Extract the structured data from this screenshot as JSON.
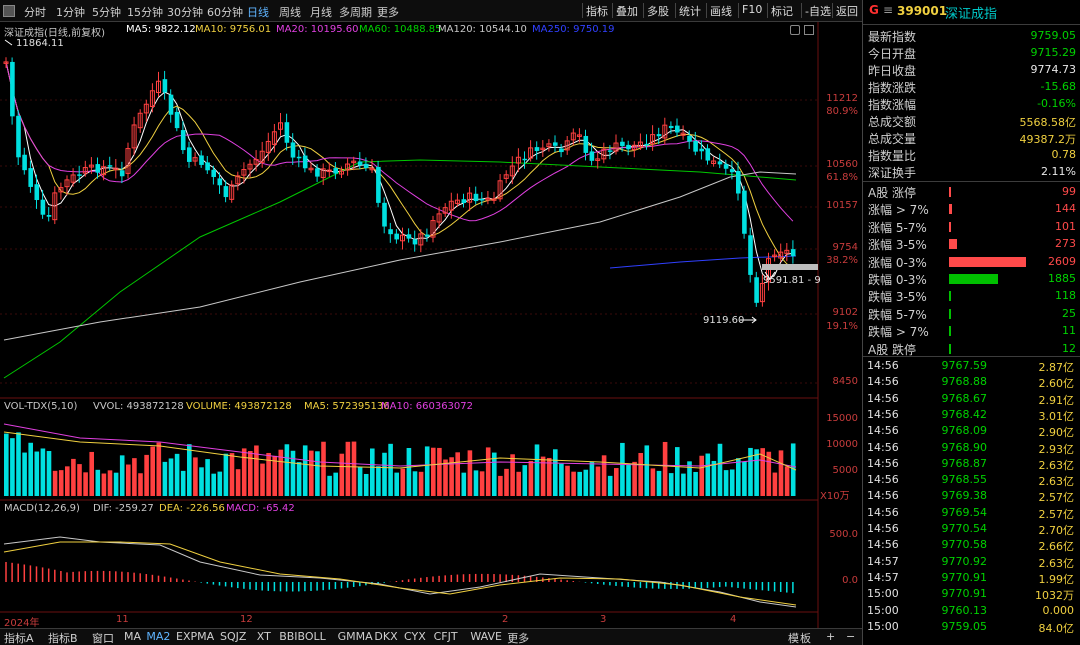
{
  "topbar": {
    "periods": [
      "分时",
      "1分钟",
      "5分钟",
      "15分钟",
      "30分钟",
      "60分钟",
      "日线",
      "周线",
      "月线",
      "多周期",
      "更多"
    ],
    "active": "日线",
    "tools": [
      "指标",
      "叠加",
      "多股",
      "统计",
      "画线",
      "F10",
      "标记",
      "-自选",
      "返回"
    ]
  },
  "kline": {
    "title": "深证成指(日线,前复权)",
    "ma": [
      {
        "label": "MA5: 9822.12",
        "color": "#ffffff"
      },
      {
        "label": "MA10: 9756.01",
        "color": "#f0d040"
      },
      {
        "label": "MA20: 10195.60",
        "color": "#e040e0"
      },
      {
        "label": "MA60: 10488.85",
        "color": "#00d200"
      },
      {
        "label": "MA120: 10544.10",
        "color": "#c8c8c8"
      },
      {
        "label": "MA250: 9750.19",
        "color": "#3040ff"
      }
    ],
    "high_label": "11864.11",
    "low_label": "9119.60",
    "cursor_label": "9591.81 - 9",
    "price_axis": [
      "11212",
      "10560",
      "10157",
      "9754",
      "9102",
      "8450"
    ],
    "pct_axis": [
      "80.9%",
      "61.8%",
      "38.2%",
      "19.1%"
    ]
  },
  "volume": {
    "legend": [
      {
        "label": "VOL-TDX(5,10)",
        "color": "#c8c8c8"
      },
      {
        "label": "VVOL: 493872128",
        "color": "#c8c8c8"
      },
      {
        "label": "VOLUME: 493872128",
        "color": "#f0d040"
      },
      {
        "label": "MA5: 572395136",
        "color": "#f0d040"
      },
      {
        "label": "MA10: 660363072",
        "color": "#e040e0"
      }
    ],
    "axis": [
      "15000",
      "10000",
      "5000"
    ],
    "unit": "X10万"
  },
  "macd": {
    "legend": [
      {
        "label": "MACD(12,26,9)",
        "color": "#c8c8c8"
      },
      {
        "label": "DIF: -259.27",
        "color": "#c8c8c8"
      },
      {
        "label": "DEA: -226.56",
        "color": "#f0d040"
      },
      {
        "label": "MACD: -65.42",
        "color": "#e040e0"
      }
    ],
    "axis": [
      "500.0",
      "0.0"
    ]
  },
  "xaxis": [
    "2024年",
    "11",
    "12",
    "2",
    "3",
    "4"
  ],
  "bottombar": {
    "tabs": [
      "指标A",
      "指标B",
      "窗口",
      "MA",
      "MA2",
      "EXPMA",
      "SQJZ",
      "XT",
      "BBIBOLL",
      "GMMA",
      "DKX",
      "CYX",
      "CFJT",
      "WAVE",
      "更多"
    ],
    "active": "MA2",
    "right": [
      "模",
      "板",
      "+",
      "−"
    ]
  },
  "panel": {
    "g": "G",
    "menu": "≡",
    "code": "399001",
    "name": "深证成指",
    "stats": [
      {
        "label": "最新指数",
        "value": "9759.05",
        "color": "grn"
      },
      {
        "label": "今日开盘",
        "value": "9715.29",
        "color": "grn"
      },
      {
        "label": "昨日收盘",
        "value": "9774.73",
        "color": "wht"
      },
      {
        "label": "指数涨跌",
        "value": "-15.68",
        "color": "grn"
      },
      {
        "label": "指数涨幅",
        "value": "-0.16%",
        "color": "grn"
      },
      {
        "label": "总成交额",
        "value": "5568.58亿",
        "color": "yel"
      },
      {
        "label": "总成交量",
        "value": "49387.2万",
        "color": "yel"
      },
      {
        "label": "指数量比",
        "value": "0.78",
        "color": "yel"
      },
      {
        "label": "深证换手",
        "value": "2.11%",
        "color": "wht"
      }
    ],
    "breadth": [
      {
        "label": "A股 涨停",
        "value": "99",
        "color": "red",
        "bar": 0.02
      },
      {
        "label": "涨幅 > 7%",
        "value": "144",
        "color": "red",
        "bar": 0.03
      },
      {
        "label": "涨幅 5-7%",
        "value": "101",
        "color": "red",
        "bar": 0.02
      },
      {
        "label": "涨幅 3-5%",
        "value": "273",
        "color": "red",
        "bar": 0.09
      },
      {
        "label": "涨幅 0-3%",
        "value": "2609",
        "color": "red",
        "bar": 0.85
      },
      {
        "label": "跌幅 0-3%",
        "value": "1885",
        "color": "grn",
        "bar": 0.54
      },
      {
        "label": "跌幅 3-5%",
        "value": "118",
        "color": "grn",
        "bar": 0.02
      },
      {
        "label": "跌幅 5-7%",
        "value": "25",
        "color": "grn",
        "bar": 0.004
      },
      {
        "label": "跌幅 > 7%",
        "value": "11",
        "color": "grn",
        "bar": 0.004
      },
      {
        "label": "A股 跌停",
        "value": "12",
        "color": "grn",
        "bar": 0.004
      }
    ],
    "ticks": [
      {
        "time": "14:56",
        "price": "9767.59",
        "amount": "2.87亿"
      },
      {
        "time": "14:56",
        "price": "9768.88",
        "amount": "2.60亿"
      },
      {
        "time": "14:56",
        "price": "9768.67",
        "amount": "2.91亿"
      },
      {
        "time": "14:56",
        "price": "9768.42",
        "amount": "3.01亿"
      },
      {
        "time": "14:56",
        "price": "9768.09",
        "amount": "2.90亿"
      },
      {
        "time": "14:56",
        "price": "9768.90",
        "amount": "2.93亿"
      },
      {
        "time": "14:56",
        "price": "9768.87",
        "amount": "2.63亿"
      },
      {
        "time": "14:56",
        "price": "9768.55",
        "amount": "2.63亿"
      },
      {
        "time": "14:56",
        "price": "9769.38",
        "amount": "2.57亿"
      },
      {
        "time": "14:56",
        "price": "9769.54",
        "amount": "2.57亿"
      },
      {
        "time": "14:56",
        "price": "9770.54",
        "amount": "2.70亿"
      },
      {
        "time": "14:56",
        "price": "9770.58",
        "amount": "2.66亿"
      },
      {
        "time": "14:57",
        "price": "9770.92",
        "amount": "2.63亿"
      },
      {
        "time": "14:57",
        "price": "9770.91",
        "amount": "1.99亿"
      },
      {
        "time": "15:00",
        "price": "9770.91",
        "amount": "1032万"
      },
      {
        "time": "15:00",
        "price": "9760.13",
        "amount": "0.000"
      },
      {
        "time": "15:00",
        "price": "9759.05",
        "amount": "84.0亿"
      }
    ]
  }
}
